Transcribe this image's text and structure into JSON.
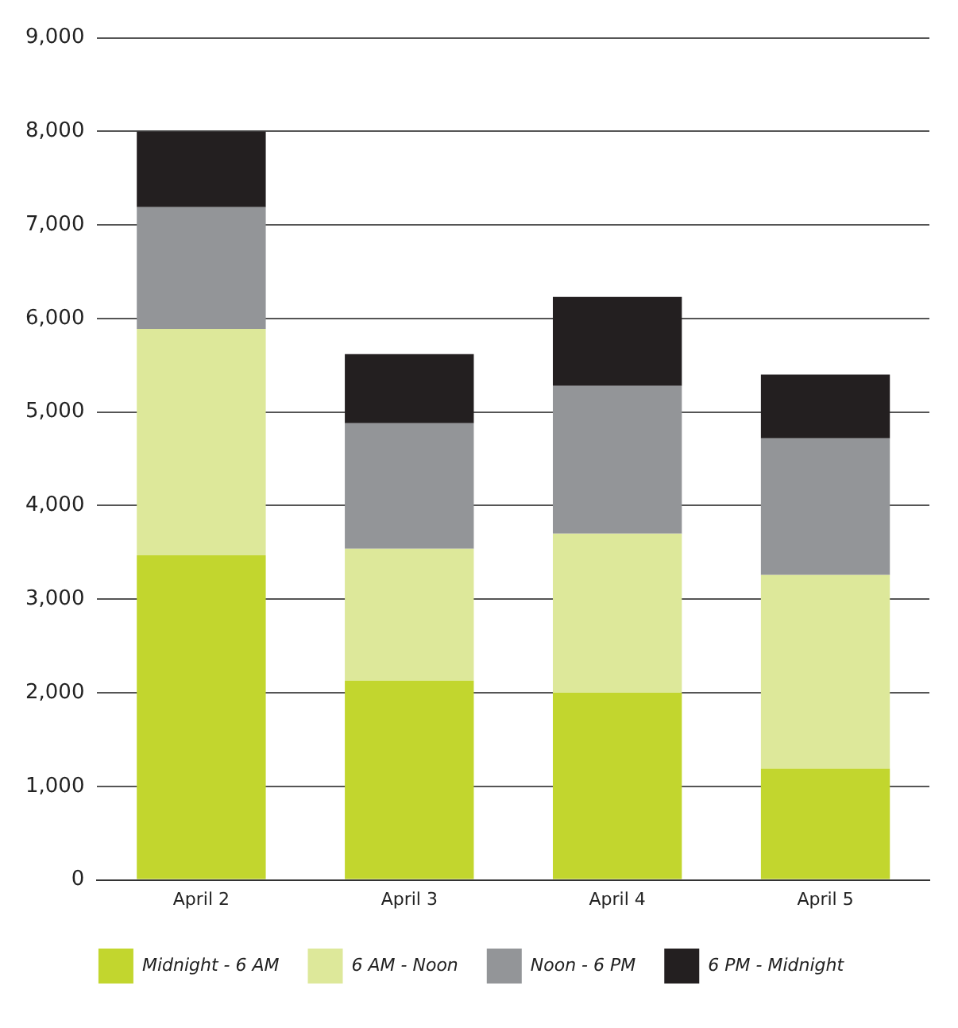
{
  "chart_data": {
    "type": "bar",
    "stacked": true,
    "categories": [
      "April 2",
      "April 3",
      "April 4",
      "April 5"
    ],
    "series": [
      {
        "name": "Midnight - 6 AM",
        "color": "#c2d62e",
        "values": [
          3470,
          2130,
          2000,
          1190
        ]
      },
      {
        "name": "6 AM - Noon",
        "color": "#dde89a",
        "values": [
          2420,
          1410,
          1700,
          2070
        ]
      },
      {
        "name": "Noon - 6 PM",
        "color": "#939598",
        "values": [
          1300,
          1340,
          1580,
          1460
        ]
      },
      {
        "name": "6 PM - Midnight",
        "color": "#231f20",
        "values": [
          810,
          740,
          950,
          680
        ]
      }
    ],
    "ylim": [
      0,
      9000
    ],
    "yticks": [
      0,
      {
        "value": 1000,
        "label": "1,000"
      },
      {
        "value": 2000,
        "label": "2,000"
      },
      {
        "value": 3000,
        "label": "3,000"
      },
      {
        "value": 4000,
        "label": "4,000"
      },
      {
        "value": 5000,
        "label": "5,000"
      },
      {
        "value": 6000,
        "label": "6,000"
      },
      {
        "value": 7000,
        "label": "7,000"
      },
      {
        "value": 8000,
        "label": "8,000"
      },
      {
        "value": 9000,
        "label": "9,000"
      }
    ],
    "grid": "y",
    "legend": "bottom"
  }
}
